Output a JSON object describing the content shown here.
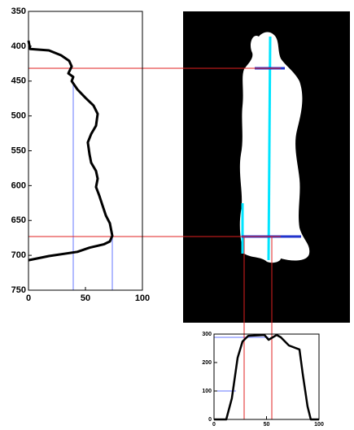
{
  "chart_data": [
    {
      "type": "line",
      "color": "#000000",
      "x": [
        0,
        1.4,
        17.9,
        28.6,
        35.7,
        37.9,
        35,
        39.3,
        37.9,
        42.9,
        50,
        57.1,
        60.7,
        59.3,
        55,
        52.1,
        53.6,
        55,
        59.3,
        60.7,
        59.3,
        62.1,
        64.3,
        67.9,
        71.4,
        73.6,
        71.4,
        66.4,
        53.6,
        42.9,
        17.9,
        0
      ],
      "values": [
        392,
        404,
        406,
        413,
        421,
        429,
        439,
        444,
        450,
        462,
        474,
        485,
        497,
        514,
        526,
        538,
        555,
        567,
        579,
        590,
        602,
        614,
        625,
        643,
        654,
        672,
        680,
        684,
        689,
        695,
        701,
        707
      ],
      "xlim": [
        0,
        100
      ],
      "xticks": [
        0,
        50,
        100
      ],
      "ylim": [
        750,
        350
      ],
      "yticks": [
        350,
        400,
        450,
        500,
        550,
        600,
        650,
        700,
        750
      ]
    },
    {
      "type": "line",
      "color": "#000000",
      "x": [
        0,
        11.6,
        17,
        22.5,
        27.1,
        32.6,
        48,
        52,
        59.7,
        63.6,
        71.3,
        81.4,
        84.5,
        89.1,
        92.2,
        100
      ],
      "values": [
        0,
        0,
        74,
        217,
        274,
        294,
        297,
        280,
        297,
        289,
        260,
        246,
        160,
        46,
        0,
        0
      ],
      "xlim": [
        0,
        100
      ],
      "xticks": [
        0,
        50,
        100
      ],
      "ylim": [
        0,
        300
      ],
      "yticks": [
        0,
        100,
        200,
        300
      ]
    }
  ]
}
